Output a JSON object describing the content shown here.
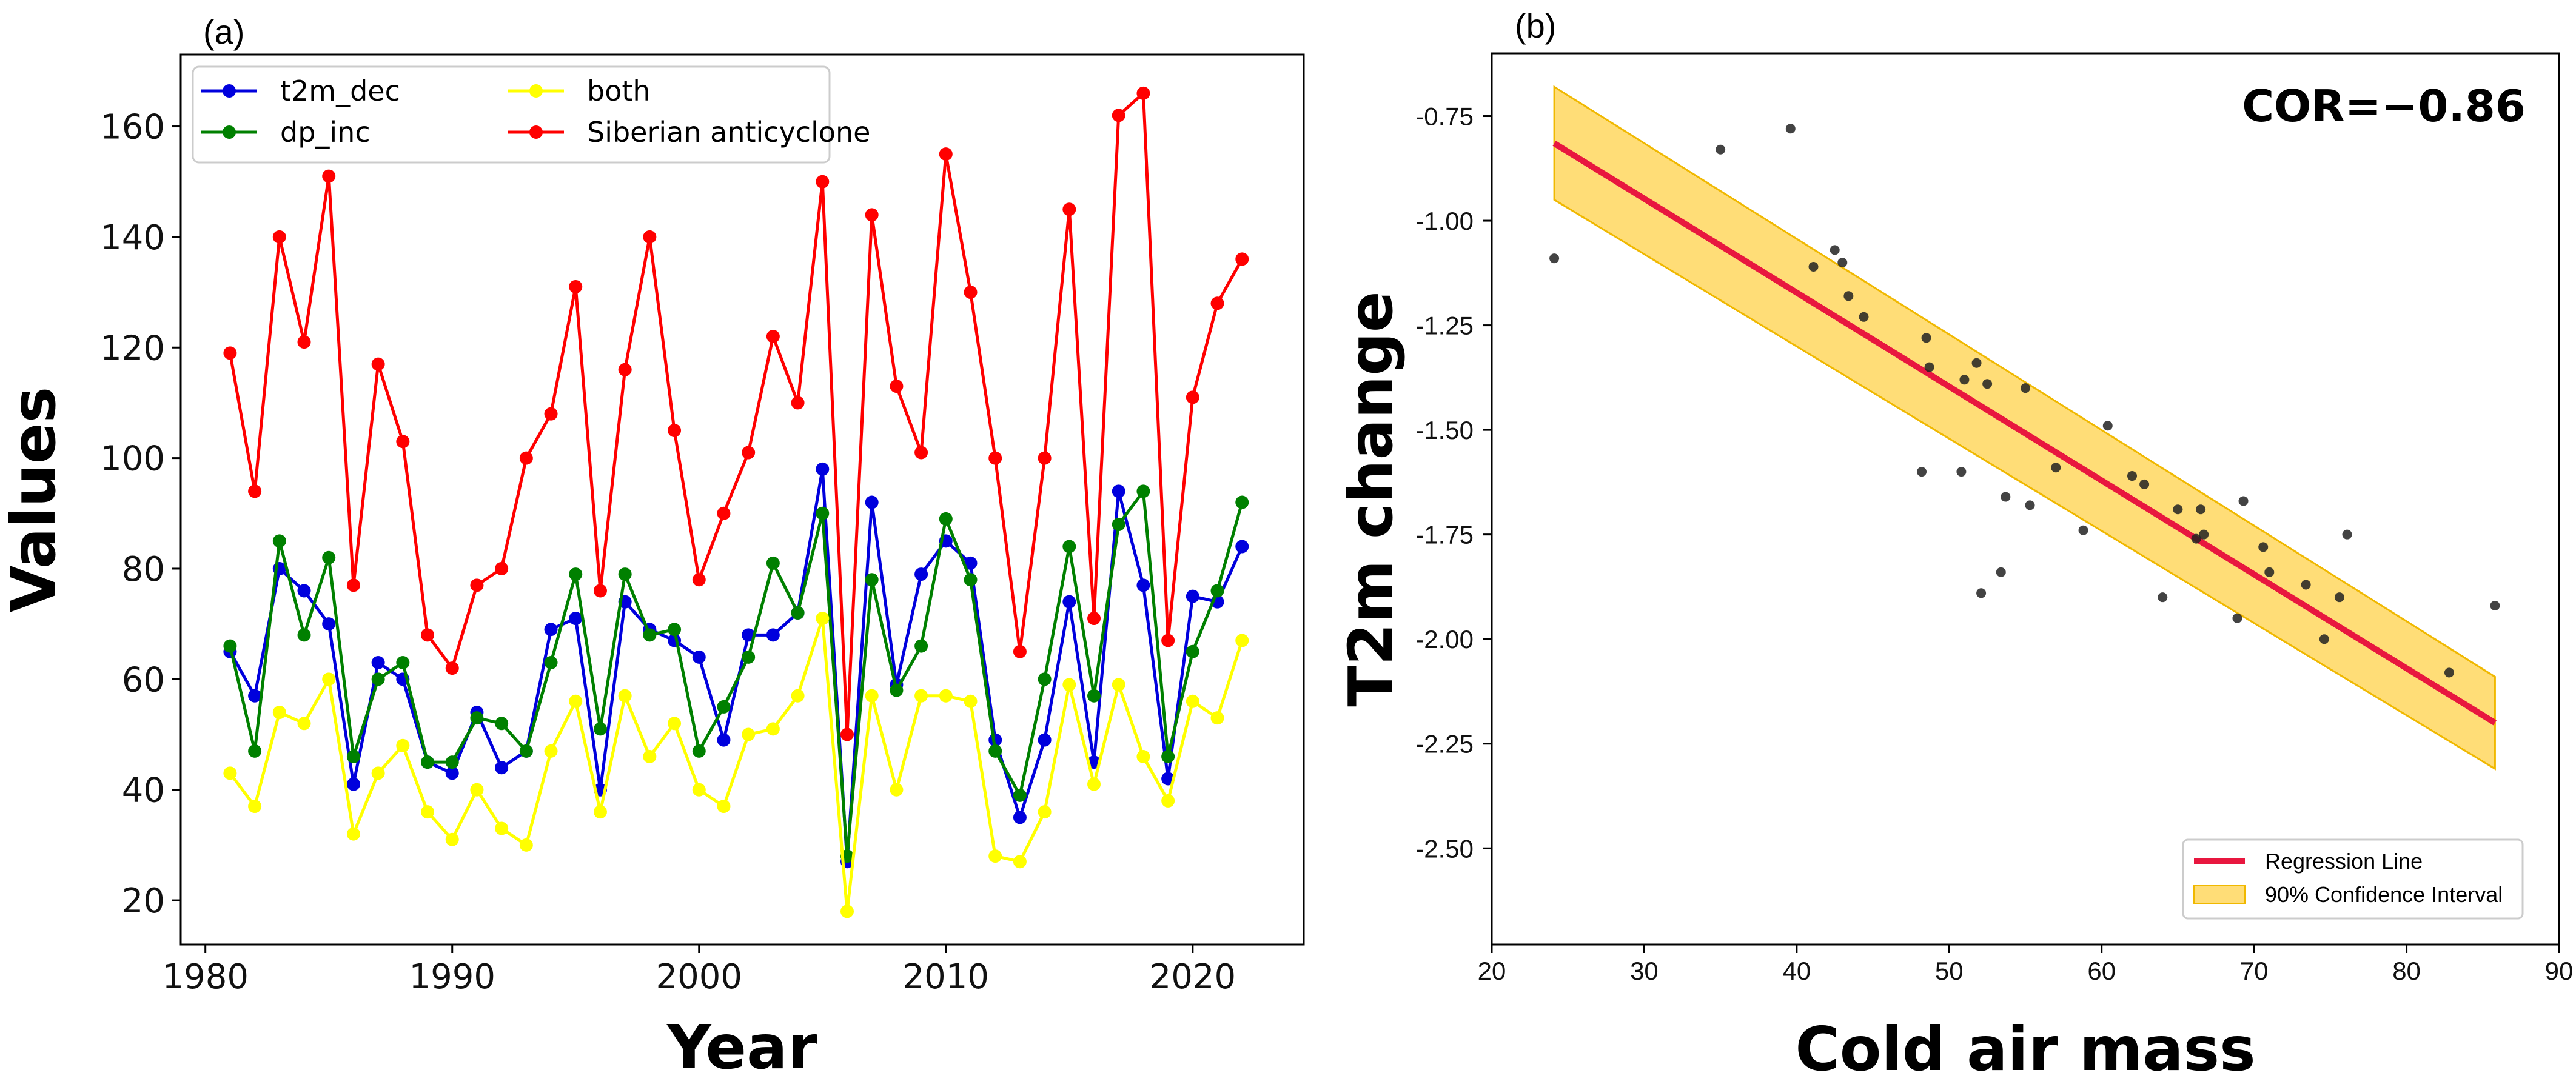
{
  "chart_data": [
    {
      "panel": "(a)",
      "type": "line",
      "xlabel": "Year",
      "ylabel": "Values",
      "xlim": [
        1979,
        2024.5
      ],
      "ylim": [
        12,
        173
      ],
      "x_ticks": [
        1980,
        1990,
        2000,
        2010,
        2020
      ],
      "y_ticks": [
        20,
        40,
        60,
        80,
        100,
        120,
        140,
        160
      ],
      "grid": false,
      "legend_position": "top-left",
      "x": [
        1981,
        1982,
        1983,
        1984,
        1985,
        1986,
        1987,
        1988,
        1989,
        1990,
        1991,
        1992,
        1993,
        1994,
        1995,
        1996,
        1997,
        1998,
        1999,
        2000,
        2001,
        2002,
        2003,
        2004,
        2005,
        2006,
        2007,
        2008,
        2009,
        2010,
        2011,
        2012,
        2013,
        2014,
        2015,
        2016,
        2017,
        2018,
        2019,
        2020,
        2021,
        2022
      ],
      "series": [
        {
          "name": "t2m_dec",
          "color": "#0000dd",
          "values": [
            65,
            57,
            80,
            76,
            70,
            41,
            63,
            60,
            45,
            43,
            54,
            44,
            47,
            69,
            71,
            40,
            74,
            69,
            67,
            64,
            49,
            68,
            68,
            72,
            98,
            27,
            92,
            59,
            79,
            85,
            81,
            49,
            35,
            49,
            74,
            45,
            94,
            77,
            42,
            75,
            74,
            84
          ]
        },
        {
          "name": "dp_inc",
          "color": "#008000",
          "values": [
            66,
            47,
            85,
            68,
            82,
            46,
            60,
            63,
            45,
            45,
            53,
            52,
            47,
            63,
            79,
            51,
            79,
            68,
            69,
            47,
            55,
            64,
            81,
            72,
            90,
            28,
            78,
            58,
            66,
            89,
            78,
            47,
            39,
            60,
            84,
            57,
            88,
            94,
            46,
            65,
            76,
            92
          ]
        },
        {
          "name": "both",
          "color": "#ffff00",
          "values": [
            43,
            37,
            54,
            52,
            60,
            32,
            43,
            48,
            36,
            31,
            40,
            33,
            30,
            47,
            56,
            36,
            57,
            46,
            52,
            40,
            37,
            50,
            51,
            57,
            71,
            18,
            57,
            40,
            57,
            57,
            56,
            28,
            27,
            36,
            59,
            41,
            59,
            46,
            38,
            56,
            53,
            67
          ]
        },
        {
          "name": "Siberian anticyclone",
          "color": "#ff0000",
          "values": [
            119,
            94,
            140,
            121,
            151,
            77,
            117,
            103,
            68,
            62,
            77,
            80,
            100,
            108,
            131,
            76,
            116,
            140,
            105,
            78,
            90,
            101,
            122,
            110,
            150,
            50,
            144,
            113,
            101,
            155,
            130,
            100,
            65,
            100,
            145,
            71,
            162,
            166,
            67,
            111,
            128,
            136
          ]
        }
      ]
    },
    {
      "panel": "(b)",
      "type": "scatter",
      "xlabel": "Cold air mass",
      "ylabel": "T2m change",
      "xlim": [
        20,
        90
      ],
      "ylim": [
        -2.73,
        -0.6
      ],
      "x_ticks": [
        20,
        30,
        40,
        50,
        60,
        70,
        80,
        90
      ],
      "y_ticks": [
        -2.5,
        -2.25,
        -2.0,
        -1.75,
        -1.5,
        -1.25,
        -1.0,
        -0.75
      ],
      "y_tick_labels": [
        "-2.50",
        "-2.25",
        "-2.00",
        "-1.75",
        "-1.50",
        "-1.25",
        "-1.00",
        "-0.75"
      ],
      "grid": false,
      "annotation": "COR=−0.86",
      "legend_position": "lower-right",
      "points": [
        [
          24.1,
          -1.09
        ],
        [
          35.0,
          -0.83
        ],
        [
          39.6,
          -0.78
        ],
        [
          41.1,
          -1.11
        ],
        [
          42.5,
          -1.07
        ],
        [
          43.0,
          -1.1
        ],
        [
          43.4,
          -1.18
        ],
        [
          44.4,
          -1.23
        ],
        [
          48.2,
          -1.6
        ],
        [
          48.5,
          -1.28
        ],
        [
          48.7,
          -1.35
        ],
        [
          50.8,
          -1.6
        ],
        [
          51.0,
          -1.38
        ],
        [
          51.8,
          -1.34
        ],
        [
          52.1,
          -1.89
        ],
        [
          52.5,
          -1.39
        ],
        [
          53.4,
          -1.84
        ],
        [
          53.7,
          -1.66
        ],
        [
          55.0,
          -1.4
        ],
        [
          55.3,
          -1.68
        ],
        [
          57.0,
          -1.59
        ],
        [
          58.8,
          -1.74
        ],
        [
          60.4,
          -1.49
        ],
        [
          62.0,
          -1.61
        ],
        [
          62.8,
          -1.63
        ],
        [
          64.0,
          -1.9
        ],
        [
          65.0,
          -1.69
        ],
        [
          66.2,
          -1.76
        ],
        [
          66.5,
          -1.69
        ],
        [
          66.7,
          -1.75
        ],
        [
          68.9,
          -1.95
        ],
        [
          69.3,
          -1.67
        ],
        [
          70.6,
          -1.78
        ],
        [
          71.0,
          -1.84
        ],
        [
          73.4,
          -1.87
        ],
        [
          74.6,
          -2.0
        ],
        [
          75.6,
          -1.9
        ],
        [
          76.1,
          -1.75
        ],
        [
          82.8,
          -2.08
        ],
        [
          85.8,
          -1.92
        ]
      ],
      "regression": {
        "x": [
          24.1,
          85.8
        ],
        "y": [
          -0.815,
          -2.2
        ],
        "color": "#e8173f",
        "name": "Regression Line"
      },
      "confidence_band": {
        "name": "90% Confidence Interval",
        "color": "#ffd24a",
        "x": [
          24.1,
          85.8
        ],
        "upper": [
          -0.68,
          -2.09
        ],
        "lower": [
          -0.95,
          -2.31
        ]
      }
    }
  ]
}
